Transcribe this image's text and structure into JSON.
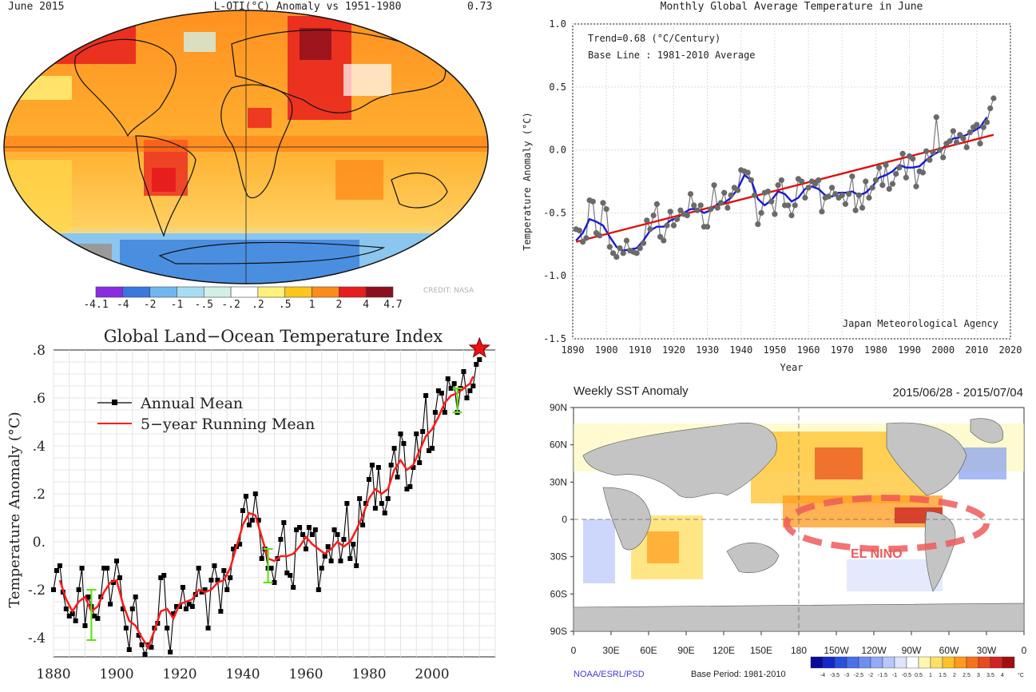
{
  "chart_data": [
    {
      "type": "heatmap",
      "panel": "June 2015 surface temperature anomaly map",
      "title_left": "June 2015",
      "title_center": "L-OTI(°C) Anomaly vs 1951-1980",
      "title_right": "0.73",
      "colorbar_labels": [
        "-4.1",
        "-4",
        "-2",
        "-1",
        "-.5",
        "-.2",
        ".2",
        ".5",
        "1",
        "2",
        "4",
        "4.7"
      ],
      "colorbar_colors": [
        "#8a2be2",
        "#3a78e0",
        "#6fb6ee",
        "#a8dcf2",
        "#d2f0e6",
        "#ffffff",
        "#fff27a",
        "#ffc61a",
        "#ff8c1a",
        "#e81e1e",
        "#8b0f1e"
      ],
      "credit": "CREDIT: NASA"
    },
    {
      "type": "line",
      "title": "Monthly Global Average Temperature in June",
      "xlabel": "Year",
      "ylabel": "Temperature Anomaly (°C)",
      "xlim": [
        1890,
        2020
      ],
      "ylim": [
        -1.5,
        1.0
      ],
      "xticks": [
        1890,
        1900,
        1910,
        1920,
        1930,
        1940,
        1950,
        1960,
        1970,
        1980,
        1990,
        2000,
        2010,
        2020
      ],
      "yticks": [
        "1.0",
        "0.5",
        "0.0",
        "-0.5",
        "-1.0",
        "-1.5"
      ],
      "yticks_values": [
        1.0,
        0.5,
        0.0,
        -0.5,
        -1.0,
        -1.5
      ],
      "annotations": [
        "Trend=0.68 (°C/Century)",
        "Base Line : 1981-2010 Average"
      ],
      "source": "Japan Meteorological Agency",
      "series": [
        {
          "name": "June anomaly",
          "color": "#666666",
          "x": [
            1891,
            1892,
            1893,
            1894,
            1895,
            1896,
            1897,
            1898,
            1899,
            1900,
            1901,
            1902,
            1903,
            1904,
            1905,
            1906,
            1907,
            1908,
            1909,
            1910,
            1911,
            1912,
            1913,
            1914,
            1915,
            1916,
            1917,
            1918,
            1919,
            1920,
            1921,
            1922,
            1923,
            1924,
            1925,
            1926,
            1927,
            1928,
            1929,
            1930,
            1931,
            1932,
            1933,
            1934,
            1935,
            1936,
            1937,
            1938,
            1939,
            1940,
            1941,
            1942,
            1943,
            1944,
            1945,
            1946,
            1947,
            1948,
            1949,
            1950,
            1951,
            1952,
            1953,
            1954,
            1955,
            1956,
            1957,
            1958,
            1959,
            1960,
            1961,
            1962,
            1963,
            1964,
            1965,
            1966,
            1967,
            1968,
            1969,
            1970,
            1971,
            1972,
            1973,
            1974,
            1975,
            1976,
            1977,
            1978,
            1979,
            1980,
            1981,
            1982,
            1983,
            1984,
            1985,
            1986,
            1987,
            1988,
            1989,
            1990,
            1991,
            1992,
            1993,
            1994,
            1995,
            1996,
            1997,
            1998,
            1999,
            2000,
            2001,
            2002,
            2003,
            2004,
            2005,
            2006,
            2007,
            2008,
            2009,
            2010,
            2011,
            2012,
            2013,
            2014,
            2015
          ],
          "values": [
            -0.63,
            -0.64,
            -0.73,
            -0.7,
            -0.4,
            -0.41,
            -0.66,
            -0.68,
            -0.42,
            -0.47,
            -0.77,
            -0.82,
            -0.85,
            -0.78,
            -0.82,
            -0.72,
            -0.8,
            -0.81,
            -0.82,
            -0.78,
            -0.74,
            -0.56,
            -0.63,
            -0.52,
            -0.43,
            -0.69,
            -0.72,
            -0.6,
            -0.49,
            -0.6,
            -0.55,
            -0.48,
            -0.51,
            -0.52,
            -0.35,
            -0.44,
            -0.48,
            -0.44,
            -0.61,
            -0.61,
            -0.47,
            -0.28,
            -0.46,
            -0.42,
            -0.34,
            -0.46,
            -0.36,
            -0.3,
            -0.32,
            -0.16,
            -0.17,
            -0.18,
            -0.24,
            -0.36,
            -0.59,
            -0.5,
            -0.34,
            -0.33,
            -0.41,
            -0.51,
            -0.28,
            -0.24,
            -0.44,
            -0.44,
            -0.52,
            -0.44,
            -0.23,
            -0.25,
            -0.38,
            -0.3,
            -0.25,
            -0.27,
            -0.24,
            -0.49,
            -0.38,
            -0.37,
            -0.3,
            -0.35,
            -0.38,
            -0.36,
            -0.43,
            -0.35,
            -0.21,
            -0.48,
            -0.36,
            -0.46,
            -0.25,
            -0.38,
            -0.3,
            -0.24,
            -0.14,
            -0.28,
            -0.12,
            -0.31,
            -0.27,
            -0.19,
            -0.14,
            -0.03,
            -0.22,
            -0.05,
            -0.07,
            -0.29,
            -0.17,
            -0.18,
            -0.01,
            -0.08,
            -0.02,
            0.26,
            0.0,
            -0.06,
            0.05,
            0.07,
            0.15,
            0.06,
            0.12,
            0.09,
            0.02,
            0.14,
            0.18,
            0.2,
            0.05,
            0.18,
            0.22,
            0.33,
            0.41
          ]
        },
        {
          "name": "5-year running mean",
          "color": "#1a1ad2",
          "x": [
            1891,
            1893,
            1895,
            1897,
            1899,
            1901,
            1903,
            1905,
            1907,
            1909,
            1911,
            1913,
            1915,
            1917,
            1919,
            1921,
            1923,
            1925,
            1927,
            1929,
            1931,
            1933,
            1935,
            1937,
            1939,
            1941,
            1943,
            1945,
            1947,
            1949,
            1951,
            1953,
            1955,
            1957,
            1959,
            1961,
            1963,
            1965,
            1967,
            1969,
            1971,
            1973,
            1975,
            1977,
            1979,
            1981,
            1983,
            1985,
            1987,
            1989,
            1991,
            1993,
            1995,
            1997,
            1999,
            2001,
            2003,
            2005,
            2007,
            2009,
            2011,
            2013
          ],
          "values": [
            -0.72,
            -0.66,
            -0.55,
            -0.57,
            -0.6,
            -0.69,
            -0.77,
            -0.8,
            -0.79,
            -0.78,
            -0.72,
            -0.64,
            -0.61,
            -0.61,
            -0.56,
            -0.54,
            -0.5,
            -0.47,
            -0.47,
            -0.5,
            -0.48,
            -0.43,
            -0.42,
            -0.38,
            -0.31,
            -0.2,
            -0.24,
            -0.39,
            -0.44,
            -0.4,
            -0.33,
            -0.35,
            -0.41,
            -0.38,
            -0.31,
            -0.29,
            -0.31,
            -0.36,
            -0.37,
            -0.34,
            -0.34,
            -0.33,
            -0.36,
            -0.34,
            -0.29,
            -0.22,
            -0.2,
            -0.17,
            -0.12,
            -0.14,
            -0.14,
            -0.13,
            -0.08,
            -0.04,
            -0.01,
            0.04,
            0.09,
            0.1,
            0.12,
            0.15,
            0.18,
            0.26
          ]
        },
        {
          "name": "Trend",
          "color": "#e01010",
          "x": [
            1891,
            2015
          ],
          "values": [
            -0.73,
            0.12
          ]
        }
      ]
    },
    {
      "type": "line",
      "title": "Global Land−Ocean Temperature Index",
      "xlabel": "",
      "ylabel": "Temperature Anomaly (°C)",
      "xlim": [
        1880,
        2020
      ],
      "ylim": [
        -0.48,
        0.8
      ],
      "xticks": [
        1880,
        1900,
        1920,
        1940,
        1960,
        1980,
        2000
      ],
      "yticks": [
        ".8",
        ".6",
        ".4",
        ".2",
        "0.",
        "-.2",
        "-.4"
      ],
      "yticks_values": [
        0.8,
        0.6,
        0.4,
        0.2,
        0.0,
        -0.2,
        -0.4
      ],
      "legend": [
        "Annual Mean",
        "5−year Running Mean"
      ],
      "series": [
        {
          "name": "Annual Mean",
          "color": "#000000",
          "x": [
            1880,
            1881,
            1882,
            1883,
            1884,
            1885,
            1886,
            1887,
            1888,
            1889,
            1890,
            1891,
            1892,
            1893,
            1894,
            1895,
            1896,
            1897,
            1898,
            1899,
            1900,
            1901,
            1902,
            1903,
            1904,
            1905,
            1906,
            1907,
            1908,
            1909,
            1910,
            1911,
            1912,
            1913,
            1914,
            1915,
            1916,
            1917,
            1918,
            1919,
            1920,
            1921,
            1922,
            1923,
            1924,
            1925,
            1926,
            1927,
            1928,
            1929,
            1930,
            1931,
            1932,
            1933,
            1934,
            1935,
            1936,
            1937,
            1938,
            1939,
            1940,
            1941,
            1942,
            1943,
            1944,
            1945,
            1946,
            1947,
            1948,
            1949,
            1950,
            1951,
            1952,
            1953,
            1954,
            1955,
            1956,
            1957,
            1958,
            1959,
            1960,
            1961,
            1962,
            1963,
            1964,
            1965,
            1966,
            1967,
            1968,
            1969,
            1970,
            1971,
            1972,
            1973,
            1974,
            1975,
            1976,
            1977,
            1978,
            1979,
            1980,
            1981,
            1982,
            1983,
            1984,
            1985,
            1986,
            1987,
            1988,
            1989,
            1990,
            1991,
            1992,
            1993,
            1994,
            1995,
            1996,
            1997,
            1998,
            1999,
            2000,
            2001,
            2002,
            2003,
            2004,
            2005,
            2006,
            2007,
            2008,
            2009,
            2010,
            2011,
            2012,
            2013,
            2014,
            2015
          ],
          "values": [
            -0.2,
            -0.12,
            -0.1,
            -0.21,
            -0.28,
            -0.31,
            -0.3,
            -0.33,
            -0.2,
            -0.11,
            -0.35,
            -0.23,
            -0.27,
            -0.31,
            -0.32,
            -0.23,
            -0.11,
            -0.11,
            -0.26,
            -0.17,
            -0.08,
            -0.15,
            -0.28,
            -0.36,
            -0.45,
            -0.28,
            -0.23,
            -0.39,
            -0.43,
            -0.47,
            -0.43,
            -0.44,
            -0.36,
            -0.34,
            -0.15,
            -0.14,
            -0.36,
            -0.46,
            -0.3,
            -0.27,
            -0.27,
            -0.19,
            -0.28,
            -0.26,
            -0.27,
            -0.22,
            -0.11,
            -0.21,
            -0.2,
            -0.36,
            -0.16,
            -0.1,
            -0.16,
            -0.29,
            -0.12,
            -0.2,
            -0.15,
            -0.03,
            -0.02,
            -0.01,
            0.13,
            0.19,
            0.07,
            0.09,
            0.2,
            0.09,
            -0.07,
            -0.03,
            -0.11,
            -0.11,
            -0.17,
            -0.07,
            0.01,
            0.08,
            -0.13,
            -0.14,
            -0.19,
            0.05,
            0.06,
            0.03,
            -0.03,
            0.06,
            0.03,
            0.05,
            -0.2,
            -0.11,
            -0.06,
            -0.02,
            -0.08,
            0.05,
            0.03,
            -0.08,
            0.01,
            0.16,
            -0.07,
            -0.01,
            -0.1,
            0.18,
            0.07,
            0.16,
            0.26,
            0.32,
            0.14,
            0.31,
            0.16,
            0.12,
            0.18,
            0.32,
            0.39,
            0.27,
            0.45,
            0.41,
            0.22,
            0.23,
            0.31,
            0.45,
            0.33,
            0.46,
            0.61,
            0.38,
            0.39,
            0.54,
            0.63,
            0.62,
            0.54,
            0.68,
            0.64,
            0.66,
            0.54,
            0.64,
            0.71,
            0.6,
            0.63,
            0.65,
            0.74,
            0.76
          ]
        },
        {
          "name": "5-year Running Mean",
          "color": "#ff1a1a",
          "x": [
            1882,
            1884,
            1886,
            1888,
            1890,
            1892,
            1894,
            1896,
            1898,
            1900,
            1902,
            1904,
            1906,
            1908,
            1910,
            1912,
            1914,
            1916,
            1918,
            1920,
            1922,
            1924,
            1926,
            1928,
            1930,
            1932,
            1934,
            1936,
            1938,
            1940,
            1942,
            1944,
            1946,
            1948,
            1950,
            1952,
            1954,
            1956,
            1958,
            1960,
            1962,
            1964,
            1966,
            1968,
            1970,
            1972,
            1974,
            1976,
            1978,
            1980,
            1982,
            1984,
            1986,
            1988,
            1990,
            1992,
            1994,
            1996,
            1998,
            2000,
            2002,
            2004,
            2006,
            2008,
            2010,
            2012,
            2013
          ],
          "values": [
            -0.16,
            -0.24,
            -0.29,
            -0.25,
            -0.23,
            -0.29,
            -0.27,
            -0.21,
            -0.17,
            -0.16,
            -0.26,
            -0.33,
            -0.35,
            -0.4,
            -0.44,
            -0.37,
            -0.29,
            -0.28,
            -0.32,
            -0.26,
            -0.25,
            -0.24,
            -0.2,
            -0.21,
            -0.2,
            -0.17,
            -0.16,
            -0.11,
            -0.02,
            0.07,
            0.12,
            0.11,
            0.02,
            -0.07,
            -0.08,
            -0.06,
            -0.06,
            -0.05,
            -0.02,
            0.02,
            -0.01,
            -0.03,
            -0.05,
            -0.03,
            0.0,
            -0.02,
            0.0,
            0.05,
            0.11,
            0.18,
            0.22,
            0.2,
            0.22,
            0.3,
            0.34,
            0.3,
            0.32,
            0.38,
            0.44,
            0.47,
            0.52,
            0.58,
            0.61,
            0.62,
            0.64,
            0.66,
            0.69
          ]
        }
      ],
      "uncertainty_bars": [
        {
          "x": 1892,
          "low": -0.41,
          "high": -0.2
        },
        {
          "x": 1948,
          "low": -0.17,
          "high": -0.03
        },
        {
          "x": 2008,
          "low": 0.54,
          "high": 0.64
        }
      ],
      "star_marker": {
        "x": 2015,
        "value": 0.8
      }
    },
    {
      "type": "heatmap",
      "panel": "Weekly SST Anomaly map",
      "title": "Weekly SST Anomaly",
      "date_range": "2015/06/28 - 2015/07/04",
      "lat_ticks": [
        "90N",
        "60N",
        "30N",
        "0",
        "30S",
        "60S",
        "90S"
      ],
      "lon_ticks": [
        "0",
        "30E",
        "60E",
        "90E",
        "120E",
        "150E",
        "180",
        "150W",
        "120W",
        "90W",
        "60W",
        "30W",
        "0"
      ],
      "annotation": "EL NINO",
      "source": "NOAA/ESRL/PSD",
      "base_period": "Base Period: 1981-2010",
      "colorbar_labels": [
        "-4",
        "-3.5",
        "-3",
        "-2.5",
        "-2",
        "-1.5",
        "-1",
        "-0.5",
        "0.5",
        "1",
        "1.5",
        "2",
        "2.5",
        "3",
        "3.5",
        "4"
      ],
      "colorbar_unit": "°C",
      "colorbar_colors": [
        "#0a0a9a",
        "#1428c8",
        "#2850e0",
        "#4a70ea",
        "#6e8ef2",
        "#94aaf6",
        "#b8c6fa",
        "#dde4fc",
        "#ffffff",
        "#fff6b0",
        "#ffe066",
        "#ffc22a",
        "#ff9a1a",
        "#f5721a",
        "#e84a1e",
        "#d02424",
        "#a01010"
      ]
    }
  ]
}
